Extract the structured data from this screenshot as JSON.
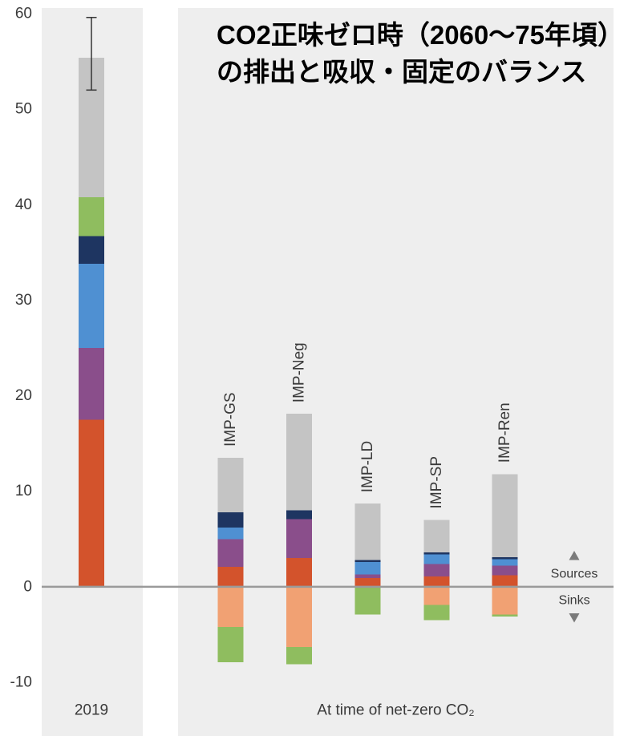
{
  "chart_data": {
    "type": "bar",
    "stacked": true,
    "title": [
      "CO2正味ゼロ時（2060〜75年頃）",
      "の排出と吸収・固定のバランス"
    ],
    "categories": [
      "2019",
      "IMP-GS",
      "IMP-Neg",
      "IMP-LD",
      "IMP-SP",
      "IMP-Ren"
    ],
    "x_group_label": "At time of net-zero CO₂",
    "series": [
      {
        "color": "#f1a173",
        "values": [
          0,
          -4.2,
          -6.3,
          0,
          -1.9,
          -2.9
        ]
      },
      {
        "color": "#d3532c",
        "values": [
          17.5,
          2.1,
          3.0,
          0.9,
          1.1,
          1.2
        ]
      },
      {
        "color": "#8a4e8b",
        "values": [
          7.5,
          2.9,
          4.1,
          0.4,
          1.3,
          1.0
        ]
      },
      {
        "color": "#4f90d2",
        "values": [
          8.8,
          1.2,
          0,
          1.3,
          1.0,
          0.7
        ]
      },
      {
        "color": "#1e3561",
        "values": [
          2.9,
          1.6,
          0.9,
          0.2,
          0.2,
          0.2
        ]
      },
      {
        "color": "#8fbd5f",
        "values": [
          4.1,
          -3.7,
          -1.8,
          -2.9,
          -1.6,
          -0.2
        ]
      },
      {
        "color": "#c4c4c4",
        "values": [
          14.6,
          5.7,
          10.1,
          5.9,
          3.4,
          8.7
        ]
      }
    ],
    "error_bars": [
      {
        "category": "2019",
        "low": 52.0,
        "high": 59.6
      }
    ],
    "ylim": [
      -10,
      60
    ],
    "yticks": [
      -10,
      0,
      10,
      20,
      30,
      40,
      50,
      60
    ],
    "grid": false,
    "zero_line": true,
    "direction_key": {
      "up_icon": "triangle-up-icon",
      "up_label": "Sources",
      "down_label": "Sinks",
      "down_icon": "triangle-down-icon"
    }
  },
  "colors": {
    "panel_background": "#eeeeee",
    "zero_line": "#9a9a9a",
    "error_bar": "#333333",
    "key_icon": "#7a7a7a"
  }
}
